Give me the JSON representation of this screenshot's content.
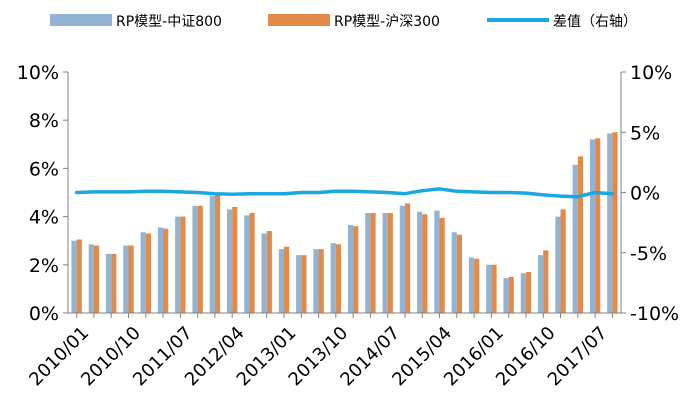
{
  "chart_data": {
    "type": "bar",
    "x": [
      "2010/01",
      "2010/04",
      "2010/07",
      "2010/10",
      "2011/01",
      "2011/04",
      "2011/07",
      "2011/10",
      "2012/01",
      "2012/04",
      "2012/07",
      "2012/10",
      "2013/01",
      "2013/04",
      "2013/07",
      "2013/10",
      "2014/01",
      "2014/04",
      "2014/07",
      "2014/10",
      "2015/01",
      "2015/04",
      "2015/07",
      "2015/10",
      "2016/01",
      "2016/04",
      "2016/07",
      "2016/10",
      "2017/01",
      "2017/04",
      "2017/07",
      "2017/10"
    ],
    "xtick_labels": [
      "2010/01",
      "2010/10",
      "2011/07",
      "2012/04",
      "2013/01",
      "2013/10",
      "2014/07",
      "2015/04",
      "2016/01",
      "2016/10",
      "2017/07"
    ],
    "series": [
      {
        "name": "RP模型-中证800",
        "color": "#92b4d4",
        "axis": "left",
        "values": [
          3.0,
          2.85,
          2.45,
          2.8,
          3.35,
          3.55,
          4.0,
          4.45,
          4.85,
          4.3,
          4.05,
          3.3,
          2.65,
          2.4,
          2.65,
          2.9,
          3.65,
          4.15,
          4.15,
          4.45,
          4.2,
          4.25,
          3.35,
          2.3,
          2.0,
          1.45,
          1.65,
          2.4,
          4.0,
          6.15,
          7.2,
          7.45
        ]
      },
      {
        "name": "RP模型-沪深300",
        "color": "#e28a4a",
        "axis": "left",
        "values": [
          3.05,
          2.8,
          2.45,
          2.8,
          3.3,
          3.5,
          4.0,
          4.45,
          4.9,
          4.4,
          4.15,
          3.4,
          2.75,
          2.4,
          2.65,
          2.85,
          3.6,
          4.15,
          4.15,
          4.55,
          4.1,
          3.95,
          3.25,
          2.25,
          2.0,
          1.5,
          1.7,
          2.6,
          4.3,
          6.5,
          7.25,
          7.5
        ]
      },
      {
        "name": "差值（右轴）",
        "color": "#1aa7e3",
        "axis": "right",
        "type": "line",
        "values": [
          0.0,
          0.05,
          0.05,
          0.05,
          0.1,
          0.1,
          0.05,
          0.0,
          -0.1,
          -0.15,
          -0.1,
          -0.1,
          -0.1,
          0.0,
          0.0,
          0.1,
          0.1,
          0.05,
          0.0,
          -0.1,
          0.15,
          0.3,
          0.1,
          0.05,
          0.0,
          0.0,
          -0.05,
          -0.2,
          -0.3,
          -0.35,
          0.0,
          -0.1
        ]
      }
    ],
    "yleft": {
      "min": 0,
      "max": 10,
      "ticks": [
        "0%",
        "2%",
        "4%",
        "6%",
        "8%",
        "10%"
      ],
      "tick_values": [
        0,
        2,
        4,
        6,
        8,
        10
      ]
    },
    "yright": {
      "min": -10,
      "max": 10,
      "ticks": [
        "-10%",
        "-5%",
        "0%",
        "5%",
        "10%"
      ],
      "tick_values": [
        -10,
        -5,
        0,
        5,
        10
      ]
    },
    "legend_position": "top",
    "grid": false
  }
}
